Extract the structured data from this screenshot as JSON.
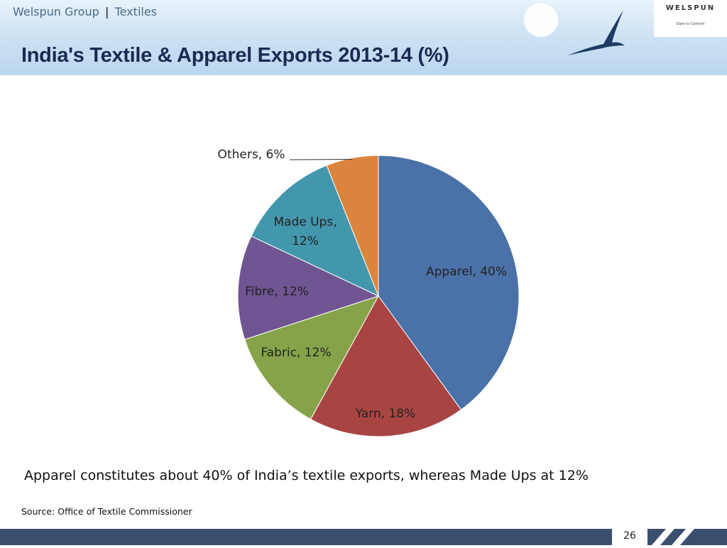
{
  "header": {
    "group": "Welspun Group",
    "separator": "|",
    "section": "Textiles"
  },
  "logo": {
    "name": "WELSPUN",
    "tagline": "Dare to Commit"
  },
  "chart_data": {
    "type": "pie",
    "title": "India's Textile & Apparel Exports 2013-14 (%)",
    "values": [
      40,
      18,
      12,
      12,
      12,
      6
    ],
    "value_labels": [
      "Apparel, 40%",
      "Yarn, 18%",
      "Fabric, 12%",
      "Fibre, 12%",
      "Made Ups, 12%",
      "Others, 6%"
    ],
    "colors": [
      "#4a72a8",
      "#a84543",
      "#87a34a",
      "#6f5592",
      "#4397ad",
      "#db843d"
    ]
  },
  "caption": "Apparel constitutes about 40% of India’s textile exports, whereas Made Ups at 12%",
  "source": "Source: Office of Textile Commissioner",
  "page_number": "26"
}
